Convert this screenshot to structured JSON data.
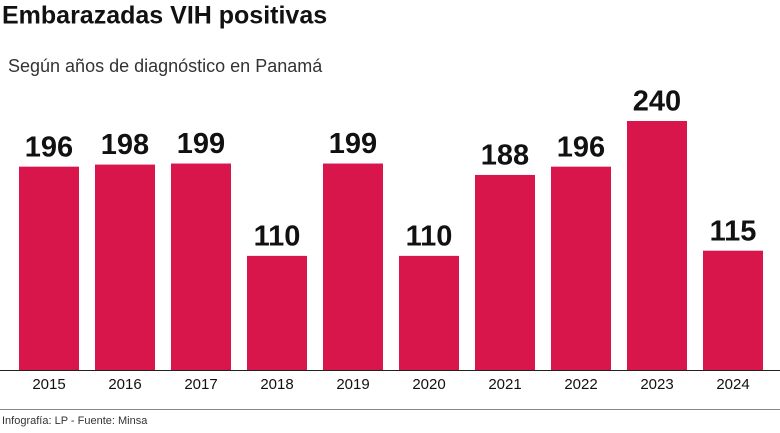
{
  "chart_data": {
    "type": "bar",
    "title": "Embarazadas VIH positivas",
    "subtitle": "Según años de diagnóstico en Panamá",
    "categories": [
      "2015",
      "2016",
      "2017",
      "2018",
      "2019",
      "2020",
      "2021",
      "2022",
      "2023",
      "2024"
    ],
    "values": [
      196,
      198,
      199,
      110,
      199,
      110,
      188,
      196,
      240,
      115
    ],
    "color": "#d9164b",
    "source": "Infografía: LP - Fuente: Minsa"
  }
}
